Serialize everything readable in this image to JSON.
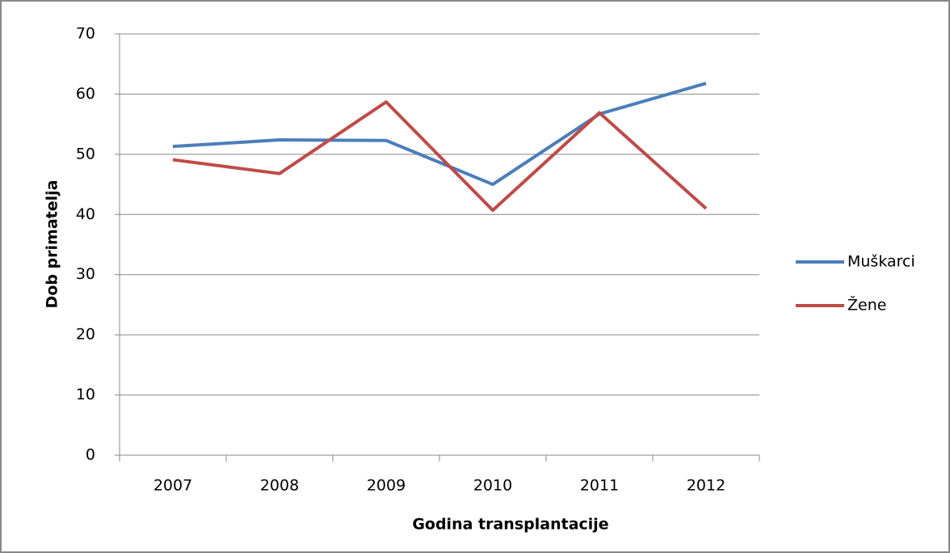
{
  "chart_data": {
    "type": "line",
    "x_label": "Godina transplantacije",
    "y_label": "Dob primatelja",
    "categories": [
      "2007",
      "2008",
      "2009",
      "2010",
      "2011",
      "2012"
    ],
    "series": [
      {
        "name": "Muškarci",
        "color": "#4a7ebb",
        "values": [
          51.3,
          52.4,
          52.3,
          45.0,
          56.7,
          61.8
        ]
      },
      {
        "name": "Žene",
        "color": "#be4b48",
        "values": [
          49.1,
          46.8,
          58.7,
          40.7,
          56.9,
          41.0
        ]
      }
    ],
    "ylim": [
      0,
      70
    ],
    "yticks": [
      0,
      10,
      20,
      30,
      40,
      50,
      60,
      70
    ],
    "grid": true,
    "legend": "right"
  }
}
